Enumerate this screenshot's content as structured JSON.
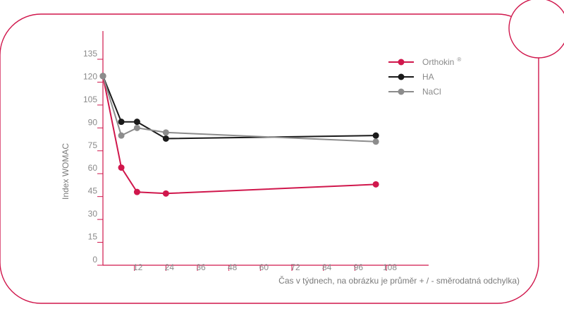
{
  "chart_data": {
    "type": "line",
    "xlabel": "Čas v týdnech, na obrázku je průměr + / - směrodatná odchylka)",
    "ylabel": "Index WOMAC",
    "xlim": [
      0,
      108
    ],
    "ylim": [
      0,
      135
    ],
    "x_ticks": [
      12,
      24,
      36,
      48,
      60,
      72,
      84,
      96,
      108
    ],
    "y_ticks": [
      0,
      15,
      30,
      45,
      60,
      75,
      90,
      105,
      120,
      135
    ],
    "grid": false,
    "legend_position": "top-right",
    "series": [
      {
        "name": "Orthokin",
        "superscript": "®",
        "color": "#d0174c",
        "x": [
          0,
          7,
          13,
          24,
          104
        ],
        "y": [
          124,
          64,
          48,
          47,
          53
        ]
      },
      {
        "name": "HA",
        "color": "#1a1a1a",
        "x": [
          0,
          7,
          13,
          24,
          104
        ],
        "y": [
          124,
          94,
          94,
          83,
          85
        ]
      },
      {
        "name": "NaCl",
        "color": "#8c8c8c",
        "x": [
          0,
          7,
          13,
          24,
          104
        ],
        "y": [
          124,
          85,
          90,
          87,
          81
        ]
      }
    ]
  },
  "frame_color": "#d0174c",
  "axis_color": "#d0174c"
}
